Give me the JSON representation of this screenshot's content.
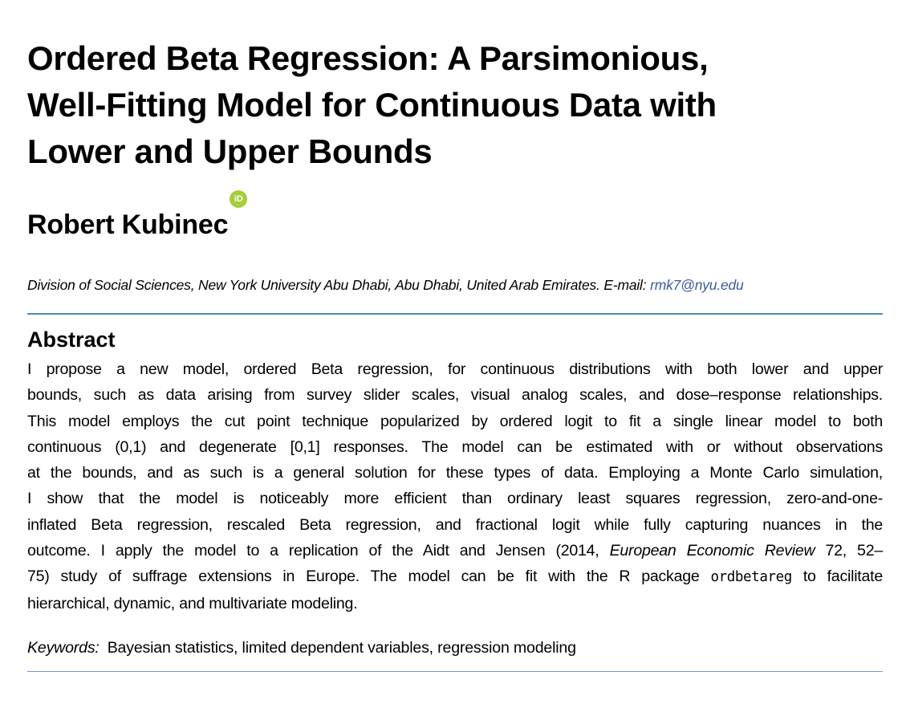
{
  "title": {
    "lines": [
      "Ordered Beta Regression: A Parsimonious,",
      "Well-Fitting Model for Continuous Data with",
      "Lower and Upper Bounds"
    ]
  },
  "author": {
    "name": "Robert Kubinec",
    "orcid_badge": "iD",
    "orcid_color": "#a6ce39"
  },
  "affiliation": {
    "text": "Division of Social Sciences, New York University Abu Dhabi, Abu Dhabi, United Arab Emirates. E-mail: ",
    "email": "rmk7@nyu.edu",
    "email_color": "#3c5aa0"
  },
  "abstract": {
    "heading": "Abstract",
    "lines": [
      "I propose a new model, ordered Beta regression, for continuous distributions with both lower and upper",
      "bounds, such as data arising from survey slider scales, visual analog scales, and dose–response relationships.",
      "This model employs the cut point technique popularized by ordered logit to fit a single linear model to both",
      "continuous (0,1) and degenerate [0,1] responses. The model can be estimated with or without observations",
      "at the bounds, and as such is a general solution for these types of data. Employing a Monte Carlo simulation,",
      "I show that the model is noticeably more efficient than ordinary least squares regression, zero-and-one-",
      "inflated Beta regression, rescaled Beta regression, and fractional logit while fully capturing nuances in the"
    ],
    "line8_pre": "outcome. I apply the model to a replication of the Aidt and Jensen (2014, ",
    "line8_journal": "European Economic Review",
    "line8_post": " 72, 52–",
    "line9_pre": "75) study of suffrage extensions in Europe. The model can be fit with the R package ",
    "line9_code": "ordbetareg",
    "line9_post": " to facilitate",
    "line10": "hierarchical, dynamic, and multivariate modeling."
  },
  "keywords": {
    "label": "Keywords:",
    "text": "Bayesian statistics, limited dependent variables, regression modeling"
  },
  "colors": {
    "rule": "#4f86c6"
  }
}
